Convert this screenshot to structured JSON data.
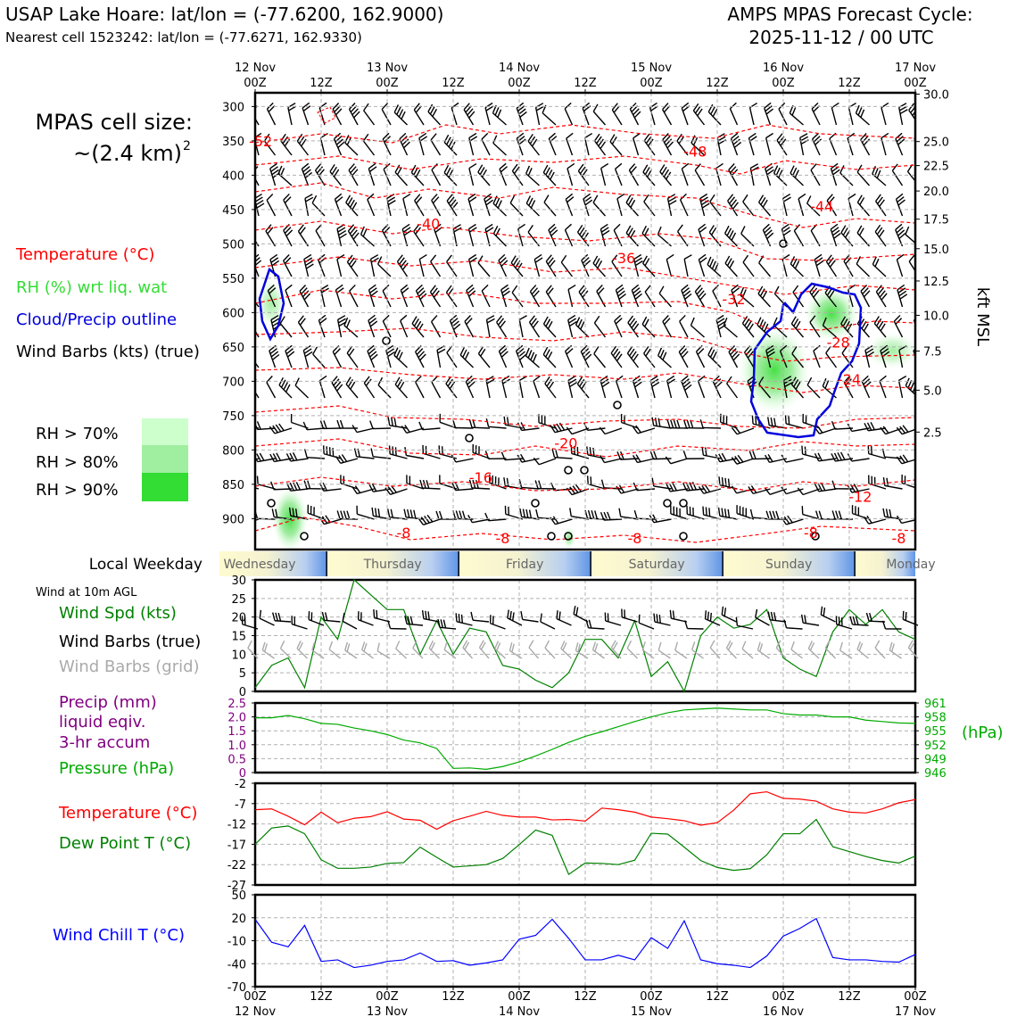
{
  "header": {
    "site_title": "USAP Lake Hoare: lat/lon = (-77.6200, 162.9000)",
    "cell_line": "Nearest cell 1523242: lat/lon = (-77.6271, 162.9330)",
    "cycle_title": "AMPS MPAS Forecast Cycle:",
    "cycle_time": "2025-11-12 / 00 UTC"
  },
  "cell_size": {
    "label": "MPAS cell size:",
    "value": "~(2.4 km)",
    "exponent": "2"
  },
  "legend_main": {
    "temperature": "Temperature (°C)",
    "rh": "RH (%) wrt liq. wat",
    "cloud": "Cloud/Precip outline",
    "barbs": "Wind Barbs (kts) (true)"
  },
  "rh_legend": [
    {
      "label": "RH > 70%",
      "color": "#ccffcc"
    },
    {
      "label": "RH > 80%",
      "color": "#a0eea0"
    },
    {
      "label": "RH > 90%",
      "color": "#33dd33"
    }
  ],
  "time_axis": {
    "top_labels": [
      {
        "day": "12 Nov",
        "hour": "00Z"
      },
      {
        "day": "",
        "hour": "12Z"
      },
      {
        "day": "13 Nov",
        "hour": "00Z"
      },
      {
        "day": "",
        "hour": "12Z"
      },
      {
        "day": "14 Nov",
        "hour": "00Z"
      },
      {
        "day": "",
        "hour": "12Z"
      },
      {
        "day": "15 Nov",
        "hour": "00Z"
      },
      {
        "day": "",
        "hour": "12Z"
      },
      {
        "day": "16 Nov",
        "hour": "00Z"
      },
      {
        "day": "",
        "hour": "12Z"
      },
      {
        "day": "17 Nov",
        "hour": "00Z"
      }
    ]
  },
  "weekday": {
    "label": "Local Weekday",
    "days": [
      "Wednesday",
      "Thursday",
      "Friday",
      "Saturday",
      "Sunday",
      "Monday"
    ]
  },
  "colors": {
    "temperature": "#ff0000",
    "rh": "#33dd33",
    "cloud": "#0000dd",
    "wind_speed": "#008000",
    "precip": "#800080",
    "pressure": "#00aa00",
    "dewpoint": "#008000",
    "windchill": "#0000ff",
    "grid_barb": "#aaaaaa"
  },
  "chart_data": [
    {
      "type": "heatmap",
      "name": "time-height cross section",
      "y_left_label_values": [
        300,
        350,
        400,
        450,
        500,
        550,
        600,
        650,
        700,
        750,
        800,
        850,
        900
      ],
      "y_left_units": "hPa",
      "y_right_label": "kft MSL",
      "y_right_ticks": [
        "30.0",
        "25.0",
        "22.5",
        "20.0",
        "17.5",
        "15.0",
        "12.5",
        "10.0",
        "7.5",
        "5.0",
        "2.5"
      ],
      "y_right_pressure": [
        282,
        351,
        386,
        423,
        464,
        507,
        554,
        604,
        656,
        713,
        774,
        838
      ],
      "ylim_hpa": [
        280,
        945
      ],
      "x_hours": [
        0,
        120
      ],
      "temperature_labels": [
        {
          "text": "-52",
          "t": 1,
          "p": 350
        },
        {
          "text": "-48",
          "t": 80,
          "p": 365
        },
        {
          "text": "-44",
          "t": 103,
          "p": 445
        },
        {
          "text": "-40",
          "t": 31.5,
          "p": 470
        },
        {
          "text": "-36",
          "t": 67,
          "p": 520
        },
        {
          "text": "-32",
          "t": 87,
          "p": 580
        },
        {
          "text": "-28",
          "t": 106,
          "p": 643
        },
        {
          "text": "-24",
          "t": 108,
          "p": 697
        },
        {
          "text": "-20",
          "t": 56.5,
          "p": 790
        },
        {
          "text": "-16",
          "t": 41,
          "p": 840
        },
        {
          "text": "-12",
          "t": 110,
          "p": 868
        },
        {
          "text": "-8",
          "t": 27,
          "p": 920
        },
        {
          "text": "-8",
          "t": 45,
          "p": 928
        },
        {
          "text": "-8",
          "t": 69,
          "p": 928
        },
        {
          "text": "-8",
          "t": 101,
          "p": 920
        },
        {
          "text": "-8",
          "t": 117,
          "p": 928
        }
      ]
    },
    {
      "type": "line",
      "name": "Wind speed 10m",
      "x_hours": [
        0,
        3,
        6,
        9,
        12,
        15,
        18,
        21,
        24,
        27,
        30,
        33,
        36,
        39,
        42,
        45,
        48,
        51,
        54,
        57,
        60,
        63,
        66,
        69,
        72,
        75,
        78,
        81,
        84,
        87,
        90,
        93,
        96,
        99,
        102,
        105,
        108,
        111,
        114,
        117,
        120
      ],
      "values": [
        1,
        7,
        9,
        1,
        20,
        14,
        30,
        26,
        22,
        22,
        10,
        19,
        10,
        17,
        16,
        7,
        6,
        3,
        1,
        5,
        14,
        14,
        9,
        19,
        4,
        8,
        0,
        15,
        20,
        17,
        18,
        22,
        9,
        6,
        4,
        16,
        22,
        18,
        22,
        16,
        14
      ],
      "ylabel": "Wind Spd (kts)",
      "ylim": [
        0,
        30
      ],
      "yticks": [
        0,
        5,
        10,
        15,
        20,
        25,
        30
      ]
    },
    {
      "type": "line",
      "name": "Pressure and precip",
      "x_hours": [
        0,
        3,
        6,
        9,
        12,
        15,
        18,
        21,
        24,
        27,
        30,
        33,
        36,
        39,
        42,
        45,
        48,
        51,
        54,
        57,
        60,
        63,
        66,
        69,
        72,
        75,
        78,
        81,
        84,
        87,
        90,
        93,
        96,
        99,
        102,
        105,
        108,
        111,
        114,
        117,
        120
      ],
      "pressure_hpa": [
        957.8,
        957.8,
        958.3,
        957.6,
        956.6,
        956.4,
        955.6,
        955.0,
        954.2,
        953.0,
        952.4,
        951.2,
        946.9,
        947.0,
        946.7,
        947.3,
        948.3,
        949.6,
        951.0,
        952.5,
        953.8,
        954.8,
        955.9,
        957.0,
        958.0,
        958.9,
        959.5,
        959.7,
        959.9,
        959.7,
        959.5,
        959.5,
        958.7,
        958.4,
        958.4,
        958.0,
        958.0,
        957.3,
        957.0,
        956.7,
        956.6
      ],
      "precip_mm": [],
      "precip_label": [
        "Precip (mm)",
        "liquid eqiv.",
        "3-hr accum"
      ],
      "pressure_label": "Pressure (hPa)",
      "y_left_ticks": [
        "2.5",
        "2.0",
        "1.5",
        "1.0",
        "0.5",
        "0"
      ],
      "y_right_ticks": [
        "961",
        "958",
        "955",
        "952",
        "949",
        "946"
      ],
      "y_right_unit": "(hPa)",
      "ylim_precip": [
        0,
        2.5
      ],
      "ylim_pressure": [
        946,
        961
      ]
    },
    {
      "type": "line",
      "name": "Temperature and dew point",
      "x_hours": [
        0,
        3,
        6,
        9,
        12,
        15,
        18,
        21,
        24,
        27,
        30,
        33,
        36,
        39,
        42,
        45,
        48,
        51,
        54,
        57,
        60,
        63,
        66,
        69,
        72,
        75,
        78,
        81,
        84,
        87,
        90,
        93,
        96,
        99,
        102,
        105,
        108,
        111,
        114,
        117,
        120
      ],
      "temperature": [
        -8.5,
        -8.3,
        -10.1,
        -12.2,
        -9.1,
        -11.7,
        -10.6,
        -10.2,
        -9.0,
        -10.8,
        -11.1,
        -13.3,
        -11.2,
        -10.1,
        -8.9,
        -9.9,
        -10.3,
        -10.3,
        -11.0,
        -10.9,
        -11.3,
        -8.1,
        -8.5,
        -9.1,
        -10.3,
        -10.7,
        -11.2,
        -12.3,
        -11.7,
        -8.6,
        -4.6,
        -4.1,
        -5.7,
        -5.9,
        -6.4,
        -8.3,
        -9.1,
        -9.3,
        -8.3,
        -6.8,
        -6.0
      ],
      "dewpoint": [
        -17.0,
        -13.0,
        -12.5,
        -14.4,
        -20.8,
        -22.9,
        -22.9,
        -22.6,
        -21.7,
        -21.5,
        -17.7,
        -20.2,
        -22.6,
        -22.3,
        -22.0,
        -20.5,
        -17.1,
        -13.5,
        -14.8,
        -24.4,
        -21.6,
        -21.7,
        -22.0,
        -20.9,
        -14.3,
        -14.5,
        -17.7,
        -21.0,
        -22.7,
        -23.4,
        -23.0,
        -19.6,
        -14.4,
        -14.4,
        -10.9,
        -17.6,
        -18.8,
        -20.0,
        -21.0,
        -21.6,
        -19.9
      ],
      "temp_label": "Temperature (°C)",
      "dew_label": "Dew Point T (°C)",
      "ylim": [
        -27,
        -2
      ],
      "yticks": [
        -2,
        -7,
        -12,
        -17,
        -22,
        -27
      ]
    },
    {
      "type": "line",
      "name": "Wind chill",
      "x_hours": [
        0,
        3,
        6,
        9,
        12,
        15,
        18,
        21,
        24,
        27,
        30,
        33,
        36,
        39,
        42,
        45,
        48,
        51,
        54,
        57,
        60,
        63,
        66,
        69,
        72,
        75,
        78,
        81,
        84,
        87,
        90,
        93,
        96,
        99,
        102,
        105,
        108,
        111,
        114,
        117,
        120
      ],
      "values": [
        18,
        -12,
        -18,
        10,
        -37,
        -35,
        -45,
        -42,
        -37,
        -35,
        -26,
        -37,
        -36,
        -42,
        -39,
        -35,
        -8,
        -3,
        18,
        -7,
        -35,
        -35,
        -29,
        -35,
        -6,
        -20,
        16,
        -35,
        -40,
        -42,
        -45,
        -30,
        -4,
        6,
        19,
        -32,
        -35,
        -35,
        -37,
        -38,
        -28
      ],
      "ylabel": "Wind Chill T (°C)",
      "ylim": [
        -70,
        50
      ],
      "yticks": [
        50,
        20,
        -10,
        -40,
        -70
      ]
    }
  ],
  "wind_panel": {
    "title": "Wind at 10m AGL",
    "spd_label": "Wind Spd (kts)",
    "true_label": "Wind Barbs (true)",
    "grid_label": "Wind Barbs (grid)"
  },
  "bottom_axis": {
    "labels": [
      {
        "hour": "00Z",
        "day": "12 Nov"
      },
      {
        "hour": "12Z",
        "day": ""
      },
      {
        "hour": "00Z",
        "day": "13 Nov"
      },
      {
        "hour": "12Z",
        "day": ""
      },
      {
        "hour": "00Z",
        "day": "14 Nov"
      },
      {
        "hour": "12Z",
        "day": ""
      },
      {
        "hour": "00Z",
        "day": "15 Nov"
      },
      {
        "hour": "12Z",
        "day": ""
      },
      {
        "hour": "00Z",
        "day": "16 Nov"
      },
      {
        "hour": "12Z",
        "day": ""
      },
      {
        "hour": "00Z",
        "day": "17 Nov"
      }
    ]
  }
}
